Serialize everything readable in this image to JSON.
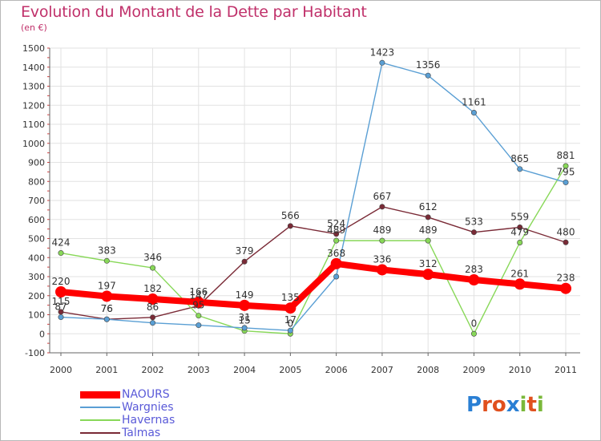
{
  "title": "Evolution du Montant de la Dette par Habitant",
  "subtitle": "(en €)",
  "logo": {
    "text": "Proxiti",
    "letters": [
      "P",
      "r",
      "o",
      "x",
      "i",
      "t",
      "i"
    ],
    "colors": [
      "#2a7fd4",
      "#e0501e",
      "#e0501e",
      "#2a7fd4",
      "#7ab83a",
      "#e0501e",
      "#7ab83a"
    ]
  },
  "chart_data": {
    "type": "line",
    "x": [
      "2000",
      "2001",
      "2002",
      "2003",
      "2004",
      "2005",
      "2006",
      "2007",
      "2008",
      "2009",
      "2010",
      "2011"
    ],
    "ylim": [
      -100,
      1500
    ],
    "yticks": [
      -100,
      0,
      100,
      200,
      300,
      400,
      500,
      600,
      700,
      800,
      900,
      1000,
      1100,
      1200,
      1300,
      1400,
      1500
    ],
    "grid": true,
    "legend_position": "bottom-left",
    "series": [
      {
        "name": "NAOURS",
        "color": "#ff0000",
        "values": [
          220,
          197,
          182,
          166,
          149,
          135,
          368,
          336,
          312,
          283,
          261,
          238
        ],
        "labels": [
          "220",
          "197",
          "182",
          "166",
          "149",
          "135",
          "368",
          "336",
          "312",
          "283",
          "261",
          "238"
        ]
      },
      {
        "name": "Wargnies",
        "color": "#5a9fd4",
        "values": [
          87,
          76,
          57,
          45,
          31,
          17,
          300,
          1423,
          1356,
          1161,
          865,
          795
        ],
        "labels": [
          "87",
          "76",
          "",
          "",
          "31",
          "17",
          "",
          "1423",
          "1356",
          "1161",
          "865",
          "795"
        ]
      },
      {
        "name": "Havernas",
        "color": "#88d858",
        "values": [
          424,
          383,
          346,
          95,
          15,
          0,
          489,
          489,
          489,
          0,
          479,
          881
        ],
        "labels": [
          "424",
          "383",
          "346",
          "95",
          "15",
          "0",
          "489",
          "489",
          "489",
          "0",
          "479",
          "881"
        ]
      },
      {
        "name": "Talmas",
        "color": "#7a2a36",
        "values": [
          115,
          76,
          86,
          147,
          379,
          566,
          524,
          667,
          612,
          533,
          559,
          480
        ],
        "labels": [
          "115",
          "76",
          "86",
          "147",
          "379",
          "566",
          "524",
          "667",
          "612",
          "533",
          "559",
          "480"
        ]
      }
    ]
  }
}
